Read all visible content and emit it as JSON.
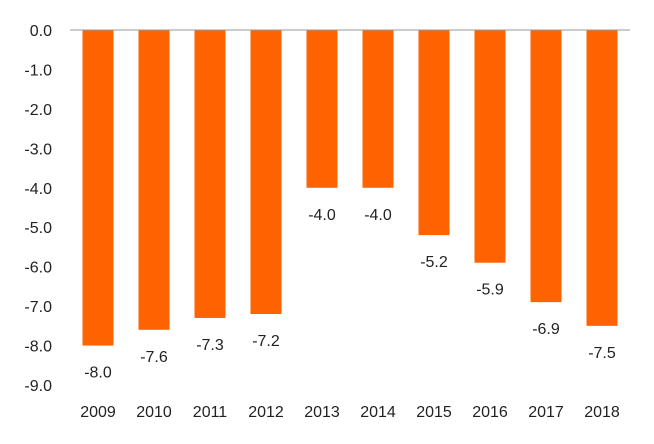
{
  "colors": {
    "bar": "#FF6200",
    "text": "#222222",
    "axis": "#999999"
  },
  "chart_data": {
    "type": "bar",
    "title": "",
    "xlabel": "",
    "ylabel": "",
    "categories": [
      "2009",
      "2010",
      "2011",
      "2012",
      "2013",
      "2014",
      "2015",
      "2016",
      "2017",
      "2018"
    ],
    "values": [
      -8.0,
      -7.6,
      -7.3,
      -7.2,
      -4.0,
      -4.0,
      -5.2,
      -5.9,
      -6.9,
      -7.5
    ],
    "data_labels": [
      "-8.0",
      "-7.6",
      "-7.3",
      "-7.2",
      "-4.0",
      "-4.0",
      "-5.2",
      "-5.9",
      "-6.9",
      "-7.5"
    ],
    "ylim": [
      -9.0,
      0.0
    ],
    "y_ticks": [
      0,
      -1,
      -2,
      -3,
      -4,
      -5,
      -6,
      -7,
      -8,
      -9
    ],
    "y_tick_labels": [
      "0.0",
      "-1.0",
      "-2.0",
      "-3.0",
      "-4.0",
      "-5.0",
      "-6.0",
      "-7.0",
      "-8.0",
      "-9.0"
    ],
    "grid": false,
    "legend": "none"
  }
}
